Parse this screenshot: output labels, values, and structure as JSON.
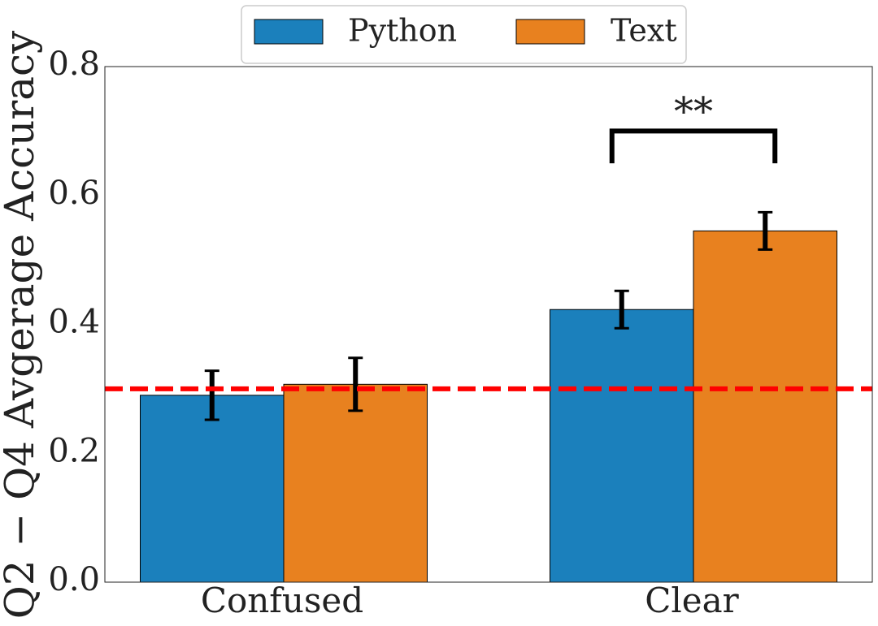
{
  "chart_data": {
    "type": "bar",
    "title": "",
    "xlabel": "",
    "ylabel": "Q2 − Q4 Avgerage Accuracy",
    "categories": [
      "Confused",
      "Clear"
    ],
    "series": [
      {
        "name": "Python",
        "values": [
          0.29,
          0.423
        ],
        "errors": [
          0.038,
          0.029
        ],
        "color": "#1b80bc"
      },
      {
        "name": "Text",
        "values": [
          0.307,
          0.545
        ],
        "errors": [
          0.041,
          0.029
        ],
        "color": "#e8811f"
      }
    ],
    "ylim": [
      0,
      0.8
    ],
    "yticks": [
      0.0,
      0.2,
      0.4,
      0.6,
      0.8
    ],
    "ytick_labels": [
      "0.0",
      "0.2",
      "0.4",
      "0.6",
      "0.8"
    ],
    "reference_line": {
      "y": 0.3,
      "color": "#ff0000",
      "style": "dashed"
    },
    "significance": {
      "category": "Clear",
      "label": "**",
      "bracket_top": 0.7,
      "bracket_bottom": 0.65
    },
    "legend": {
      "position": "top-center",
      "entries": [
        "Python",
        "Text"
      ]
    },
    "grid": false
  }
}
